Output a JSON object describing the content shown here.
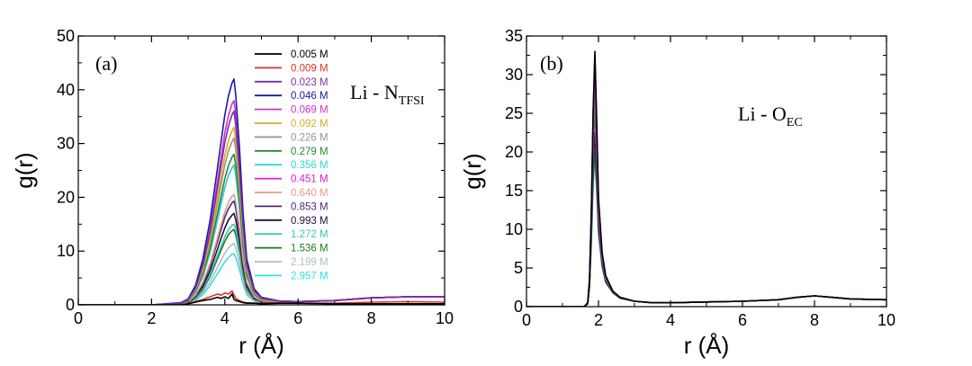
{
  "chart_data": [
    {
      "type": "line",
      "panel_label": "(a)",
      "annotation": {
        "main": "Li - N",
        "sub": "TFSI"
      },
      "xlabel": "r (Å)",
      "ylabel": "g(r)",
      "xlim": [
        0,
        10
      ],
      "ylim": [
        0,
        50
      ],
      "xticks": [
        0,
        2,
        4,
        6,
        8,
        10
      ],
      "yticks": [
        0,
        10,
        20,
        30,
        40,
        50
      ],
      "x": [
        0,
        2.0,
        2.8,
        3.0,
        3.2,
        3.4,
        3.6,
        3.8,
        3.9,
        4.0,
        4.1,
        4.2,
        4.25,
        4.3,
        4.4,
        4.5,
        4.6,
        4.8,
        5.0,
        5.5,
        6.0,
        7.0,
        8.0,
        9.0,
        10.0
      ],
      "legend_position": "upper-middle",
      "series": [
        {
          "name": "0.005 M",
          "color": "#000000",
          "values": [
            0,
            0,
            0,
            0.2,
            0.5,
            0.8,
            1.0,
            1.4,
            1.2,
            1.5,
            1.2,
            2.0,
            1.0,
            0.8,
            0.6,
            0.4,
            0.3,
            0.3,
            0.2,
            0.3,
            0.3,
            0.2,
            0.2,
            0.2,
            0.2
          ]
        },
        {
          "name": "0.009 M",
          "color": "#e0312b",
          "values": [
            0,
            0,
            0,
            0.2,
            0.6,
            1.0,
            1.5,
            2.0,
            1.8,
            2.2,
            2.0,
            2.6,
            1.8,
            1.2,
            0.8,
            0.5,
            0.4,
            0.3,
            0.3,
            0.3,
            0.3,
            0.3,
            0.5,
            0.6,
            0.5
          ]
        },
        {
          "name": "0.023 M",
          "color": "#7a2ca8",
          "values": [
            0,
            0,
            0.3,
            0.9,
            3.1,
            7.3,
            13.5,
            21.8,
            26.0,
            30.2,
            33.3,
            35.4,
            36.0,
            33.3,
            24.9,
            14.6,
            7.3,
            2.6,
            1.2,
            0.7,
            0.6,
            0.8,
            1.3,
            1.5,
            1.5
          ]
        },
        {
          "name": "0.046 M",
          "color": "#1a1aa6",
          "values": [
            0,
            0,
            0.4,
            1.1,
            3.6,
            8.5,
            15.8,
            25.5,
            30.4,
            35.3,
            38.9,
            41.3,
            42.0,
            38.9,
            29.2,
            17.0,
            8.5,
            3.0,
            1.4,
            0.7,
            0.6,
            0.8,
            1.3,
            1.5,
            1.5
          ]
        },
        {
          "name": "0.069 M",
          "color": "#cc33cc",
          "values": [
            0,
            0,
            0.3,
            1.0,
            3.3,
            7.7,
            14.3,
            23.1,
            27.5,
            32.0,
            35.2,
            37.4,
            38.0,
            35.2,
            26.4,
            15.4,
            7.7,
            2.7,
            1.3,
            0.7,
            0.6,
            0.8,
            1.3,
            1.5,
            1.5
          ]
        },
        {
          "name": "0.092 M",
          "color": "#d4b020",
          "values": [
            0,
            0,
            0.3,
            0.8,
            2.9,
            6.7,
            12.4,
            20.0,
            23.9,
            27.8,
            30.6,
            32.4,
            33.0,
            30.6,
            22.9,
            13.4,
            6.7,
            2.4,
            1.1,
            0.7,
            0.6,
            0.8,
            1.3,
            1.5,
            1.5
          ]
        },
        {
          "name": "0.226 M",
          "color": "#9e8f8f",
          "values": [
            0,
            0,
            0.3,
            0.8,
            2.7,
            6.3,
            11.6,
            18.8,
            22.4,
            26.0,
            28.7,
            30.4,
            31.0,
            28.7,
            21.5,
            12.6,
            6.3,
            2.2,
            1.0,
            0.7,
            0.6,
            0.8,
            1.3,
            1.5,
            1.5
          ]
        },
        {
          "name": "0.279 M",
          "color": "#2a8a2a",
          "values": [
            0,
            0,
            0.2,
            0.7,
            2.5,
            5.7,
            10.5,
            17.0,
            20.2,
            23.5,
            25.9,
            27.5,
            28.0,
            25.9,
            19.4,
            11.3,
            5.7,
            2.0,
            0.9,
            0.7,
            0.6,
            0.8,
            1.3,
            1.5,
            1.5
          ]
        },
        {
          "name": "0.356 M",
          "color": "#2fd8d8",
          "values": [
            0,
            0,
            0.2,
            0.7,
            2.3,
            5.3,
            9.8,
            15.8,
            18.8,
            21.8,
            24.1,
            25.5,
            26.0,
            24.1,
            18.0,
            10.5,
            5.3,
            1.9,
            0.9,
            0.7,
            0.6,
            0.8,
            1.3,
            1.5,
            1.5
          ]
        },
        {
          "name": "0.451 M",
          "color": "#d81bd8",
          "values": [
            0,
            0,
            0.2,
            0.7,
            2.3,
            5.3,
            9.8,
            15.8,
            18.8,
            21.8,
            24.1,
            25.5,
            26.0,
            24.1,
            18.0,
            10.5,
            5.3,
            1.9,
            0.9,
            0.7,
            0.6,
            0.8,
            1.3,
            1.5,
            1.5
          ]
        },
        {
          "name": "0.640 M",
          "color": "#e49a8a",
          "values": [
            0,
            0,
            0.2,
            0.5,
            1.8,
            4.2,
            7.7,
            12.5,
            14.9,
            17.3,
            19.1,
            20.2,
            20.5,
            19.1,
            14.3,
            8.3,
            4.2,
            1.5,
            0.7,
            0.6,
            0.6,
            0.8,
            1.3,
            1.5,
            1.5
          ]
        },
        {
          "name": "0.853 M",
          "color": "#4a2a7a",
          "values": [
            0,
            0,
            0.2,
            0.5,
            1.7,
            3.9,
            7.3,
            11.8,
            14.0,
            16.3,
            17.9,
            19.0,
            19.3,
            17.9,
            13.4,
            7.8,
            3.9,
            1.4,
            0.6,
            0.6,
            0.6,
            0.8,
            1.3,
            1.5,
            1.5
          ]
        },
        {
          "name": "0.993 M",
          "color": "#2a0a3a",
          "values": [
            0,
            0,
            0.1,
            0.4,
            1.5,
            3.4,
            6.4,
            10.4,
            12.4,
            14.3,
            15.8,
            16.7,
            17.0,
            15.8,
            11.8,
            6.9,
            3.4,
            1.2,
            0.6,
            0.6,
            0.6,
            0.8,
            1.3,
            1.5,
            1.5
          ]
        },
        {
          "name": "1.272 M",
          "color": "#3ac8b8",
          "values": [
            0,
            0,
            0.1,
            0.4,
            1.3,
            3.1,
            5.7,
            9.2,
            10.9,
            12.7,
            14.0,
            14.8,
            15.0,
            14.0,
            10.4,
            6.1,
            3.1,
            1.1,
            0.5,
            0.6,
            0.6,
            0.8,
            1.3,
            1.5,
            1.5
          ]
        },
        {
          "name": "1.536 M",
          "color": "#1e7a1e",
          "values": [
            0,
            0,
            0.1,
            0.4,
            1.2,
            2.8,
            5.3,
            8.6,
            10.2,
            11.8,
            13.1,
            13.8,
            14.0,
            13.0,
            9.7,
            5.7,
            2.8,
            1.0,
            0.5,
            0.6,
            0.6,
            0.8,
            1.3,
            1.5,
            1.5
          ]
        },
        {
          "name": "2.199 M",
          "color": "#b4bcc6",
          "values": [
            0,
            0,
            0.1,
            0.3,
            1.0,
            2.3,
            4.3,
            7.0,
            8.3,
            9.6,
            10.6,
            11.2,
            11.4,
            10.6,
            7.9,
            4.6,
            2.3,
            0.8,
            0.4,
            0.6,
            0.6,
            0.8,
            1.3,
            1.5,
            1.5
          ]
        },
        {
          "name": "2.957 M",
          "color": "#33e0e0",
          "values": [
            0,
            0,
            0.1,
            0.2,
            0.8,
            1.9,
            3.6,
            5.8,
            6.9,
            8.0,
            8.8,
            9.4,
            9.5,
            8.8,
            6.6,
            3.9,
            1.9,
            0.7,
            0.3,
            0.6,
            0.6,
            0.8,
            1.3,
            1.5,
            1.5
          ]
        }
      ]
    },
    {
      "type": "line",
      "panel_label": "(b)",
      "annotation": {
        "main": "Li - O",
        "sub": "EC"
      },
      "xlabel": "r (Å)",
      "ylabel": "g(r)",
      "xlim": [
        0,
        10
      ],
      "ylim": [
        0,
        35
      ],
      "xticks": [
        0,
        2,
        4,
        6,
        8,
        10
      ],
      "yticks": [
        0,
        5,
        10,
        15,
        20,
        25,
        30,
        35
      ],
      "x": [
        0,
        1.6,
        1.7,
        1.75,
        1.8,
        1.85,
        1.9,
        1.95,
        2.0,
        2.1,
        2.2,
        2.4,
        2.6,
        3.0,
        3.5,
        4.0,
        5.0,
        6.0,
        7.0,
        7.5,
        8.0,
        8.5,
        9.0,
        10.0
      ],
      "series": [
        {
          "name": "0.005 M",
          "color": "#000000",
          "values": [
            0,
            0,
            0.5,
            3.5,
            12.0,
            25.0,
            33.0,
            24.0,
            14.0,
            7.0,
            4.0,
            2.0,
            1.2,
            0.7,
            0.5,
            0.5,
            0.6,
            0.7,
            0.9,
            1.2,
            1.4,
            1.2,
            1.0,
            0.9
          ]
        },
        {
          "name": "0.023 M",
          "color": "#7a2ca8",
          "values": [
            0,
            0,
            0.5,
            3.5,
            12.0,
            25.0,
            32.5,
            23.5,
            13.8,
            6.9,
            3.9,
            2.0,
            1.2,
            0.7,
            0.5,
            0.5,
            0.6,
            0.7,
            0.9,
            1.2,
            1.4,
            1.2,
            1.0,
            0.9
          ]
        },
        {
          "name": "0.069 M",
          "color": "#cc33cc",
          "values": [
            0,
            0,
            0.5,
            3.4,
            11.5,
            24.0,
            30.0,
            22.0,
            13.0,
            6.6,
            3.8,
            2.0,
            1.2,
            0.7,
            0.5,
            0.5,
            0.6,
            0.7,
            0.9,
            1.2,
            1.4,
            1.2,
            1.0,
            0.9
          ]
        },
        {
          "name": "0.279 M",
          "color": "#2a8a2a",
          "values": [
            0,
            0,
            0.4,
            3.0,
            10.5,
            21.0,
            27.5,
            20.5,
            12.2,
            6.3,
            3.6,
            1.9,
            1.2,
            0.7,
            0.5,
            0.5,
            0.6,
            0.7,
            0.9,
            1.2,
            1.4,
            1.2,
            1.0,
            0.9
          ]
        },
        {
          "name": "0.451 M",
          "color": "#d81bd8",
          "values": [
            0,
            0,
            0.4,
            2.9,
            10.0,
            20.0,
            25.5,
            19.0,
            11.5,
            6.0,
            3.5,
            1.9,
            1.2,
            0.7,
            0.5,
            0.5,
            0.6,
            0.7,
            0.9,
            1.2,
            1.4,
            1.2,
            1.0,
            0.9
          ]
        },
        {
          "name": "0.993 M",
          "color": "#2a0a3a",
          "values": [
            0,
            0,
            0.4,
            2.7,
            9.0,
            18.0,
            22.5,
            17.0,
            10.5,
            5.6,
            3.3,
            1.8,
            1.1,
            0.7,
            0.5,
            0.5,
            0.6,
            0.7,
            0.9,
            1.2,
            1.4,
            1.2,
            1.0,
            0.9
          ]
        },
        {
          "name": "1.536 M",
          "color": "#1e7a1e",
          "values": [
            0,
            0,
            0.3,
            2.5,
            8.5,
            16.5,
            20.0,
            15.5,
            9.8,
            5.3,
            3.2,
            1.8,
            1.1,
            0.7,
            0.5,
            0.5,
            0.6,
            0.7,
            0.9,
            1.2,
            1.4,
            1.2,
            1.0,
            0.9
          ]
        },
        {
          "name": "2.957 M",
          "color": "#33e0e0",
          "values": [
            0,
            0,
            0.3,
            2.4,
            8.0,
            15.5,
            19.0,
            15.0,
            9.5,
            5.2,
            3.1,
            1.8,
            1.1,
            0.7,
            0.5,
            0.5,
            0.6,
            0.7,
            0.9,
            1.2,
            1.4,
            1.2,
            1.0,
            0.9
          ]
        }
      ]
    }
  ]
}
